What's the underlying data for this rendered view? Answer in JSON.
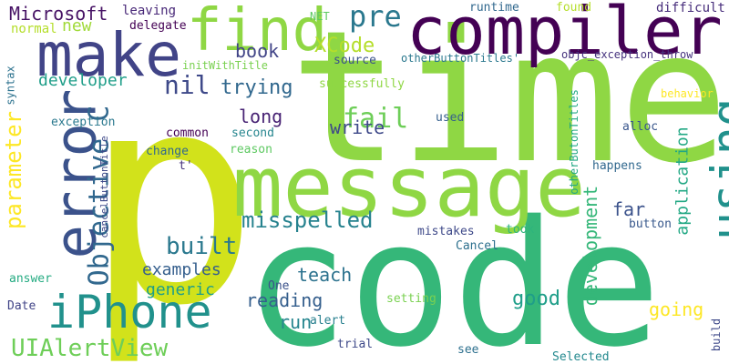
{
  "words": [
    {
      "text": "p",
      "color": "#d2e21b"
    },
    {
      "text": "time",
      "color": "#8fd744"
    },
    {
      "text": "code",
      "color": "#35b779"
    },
    {
      "text": "compiler",
      "color": "#440154"
    },
    {
      "text": "message",
      "color": "#8fd744"
    },
    {
      "text": "make",
      "color": "#414487"
    },
    {
      "text": "find",
      "color": "#8fd744"
    },
    {
      "text": "using",
      "color": "#21918c"
    },
    {
      "text": "error",
      "color": "#3b528b"
    },
    {
      "text": "iPhone",
      "color": "#21918c"
    },
    {
      "text": "UIAlertView",
      "color": "#6ece58"
    },
    {
      "text": "Objective C",
      "color": "#31688e"
    },
    {
      "text": "misspelled",
      "color": "#26828e"
    },
    {
      "text": "parameter",
      "color": "#fde725"
    },
    {
      "text": "built",
      "color": "#2a788e"
    },
    {
      "text": "development",
      "color": "#35b779"
    },
    {
      "text": "application",
      "color": "#22a884"
    },
    {
      "text": "fail",
      "color": "#6ece58"
    },
    {
      "text": "pre",
      "color": "#2a788e"
    },
    {
      "text": "nil",
      "color": "#3e4989"
    },
    {
      "text": "trying",
      "color": "#31688e"
    },
    {
      "text": "Microsoft",
      "color": "#471365"
    },
    {
      "text": "XCode",
      "color": "#b5de2b"
    },
    {
      "text": "new",
      "color": "#a0da39"
    },
    {
      "text": "book",
      "color": "#414487"
    },
    {
      "text": "developer",
      "color": "#1f9e89"
    },
    {
      "text": "long",
      "color": "#482374"
    },
    {
      "text": "write",
      "color": "#3e4989"
    },
    {
      "text": "far",
      "color": "#3b528b"
    },
    {
      "text": "examples",
      "color": "#355f8d"
    },
    {
      "text": "generic",
      "color": "#1f9e89"
    },
    {
      "text": "teach",
      "color": "#2c728e"
    },
    {
      "text": "reading",
      "color": "#355f8d"
    },
    {
      "text": "run",
      "color": "#25858e"
    },
    {
      "text": "good",
      "color": "#1f9e89"
    },
    {
      "text": "going",
      "color": "#fde725"
    },
    {
      "text": "build",
      "color": "#3e4989"
    },
    {
      "text": "leaving",
      "color": "#482878"
    },
    {
      "text": "delegate",
      "color": "#440154"
    },
    {
      "text": "NET",
      "color": "#5ec962"
    },
    {
      "text": "runtime",
      "color": "#31688e"
    },
    {
      "text": "found",
      "color": "#b5de2b"
    },
    {
      "text": "difficult",
      "color": "#472d7b"
    },
    {
      "text": "normal",
      "color": "#b5de2b"
    },
    {
      "text": "source",
      "color": "#3b528b"
    },
    {
      "text": "initWithTitle",
      "color": "#7ad151"
    },
    {
      "text": "otherButtonTitles'",
      "color": "#2a788e"
    },
    {
      "text": "objc_exception_throw",
      "color": "#46337e"
    },
    {
      "text": "behavior",
      "color": "#fde725"
    },
    {
      "text": "successfully",
      "color": "#8fd744"
    },
    {
      "text": "syntax",
      "color": "#2c728e"
    },
    {
      "text": "exception",
      "color": "#2a788e"
    },
    {
      "text": "used",
      "color": "#355f8d"
    },
    {
      "text": "common",
      "color": "#440154"
    },
    {
      "text": "second",
      "color": "#25858e"
    },
    {
      "text": "change",
      "color": "#31688e"
    },
    {
      "text": "reason",
      "color": "#5ec962"
    },
    {
      "text": "t'",
      "color": "#46337e"
    },
    {
      "text": "happens",
      "color": "#31688e"
    },
    {
      "text": "alloc",
      "color": "#39568c"
    },
    {
      "text": "cancelButtonTitle",
      "color": "#3e4989"
    },
    {
      "text": "otherButonTitles",
      "color": "#22a884"
    },
    {
      "text": "button",
      "color": "#38588c"
    },
    {
      "text": "took",
      "color": "#2fb47c"
    },
    {
      "text": "mistakes",
      "color": "#3e4989"
    },
    {
      "text": "Cancel",
      "color": "#2d708e"
    },
    {
      "text": "answer",
      "color": "#25ab82"
    },
    {
      "text": "One",
      "color": "#3b528b"
    },
    {
      "text": "alert",
      "color": "#277f8e"
    },
    {
      "text": "Date",
      "color": "#414487"
    },
    {
      "text": "trial",
      "color": "#3e4989"
    },
    {
      "text": "setting",
      "color": "#7ad151"
    },
    {
      "text": "see",
      "color": "#2d708e"
    },
    {
      "text": "Selected",
      "color": "#23898e"
    }
  ]
}
